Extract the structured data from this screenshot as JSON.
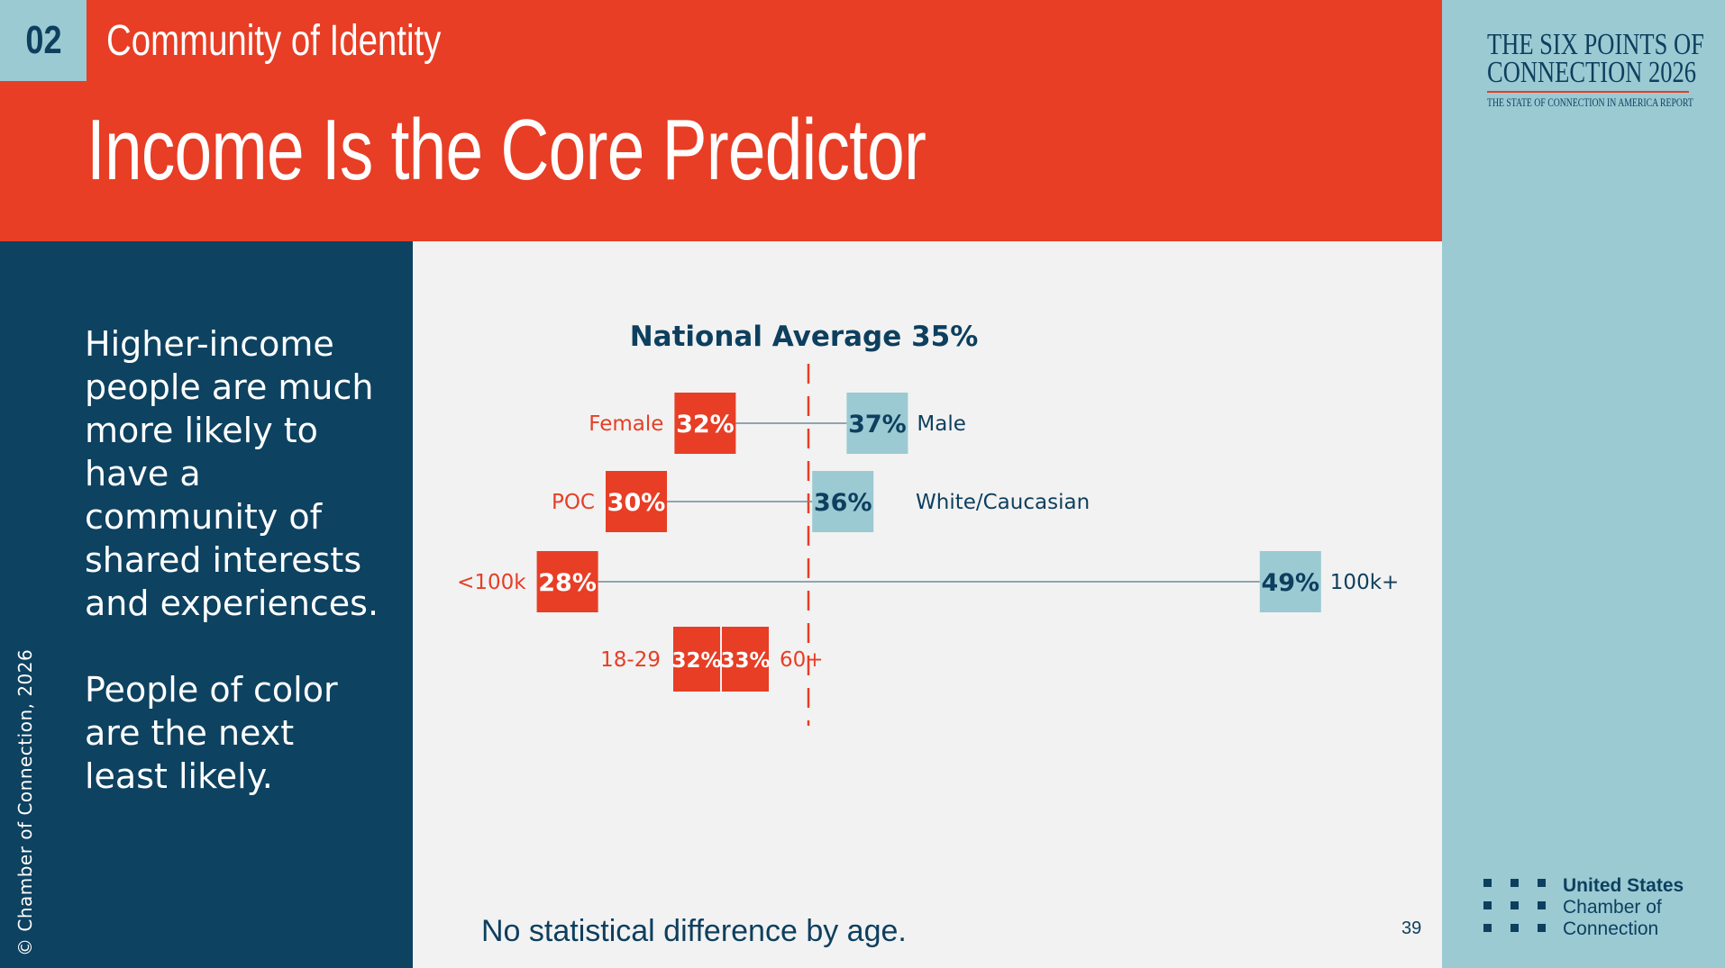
{
  "header": {
    "section_number": "02",
    "section_title": "Community of Identity",
    "title": "Income Is the Core Predictor"
  },
  "brand": {
    "line1": "THE SIX POINTS OF",
    "line2": "CONNECTION 2026",
    "subtitle": "THE STATE OF CONNECTION IN AMERICA REPORT"
  },
  "logo": {
    "line1": "United States",
    "line2": "Chamber of",
    "line3": "Connection"
  },
  "sidebar": {
    "paragraph1": "Higher-income people are much more likely to have a community of shared interests and experiences.",
    "paragraph2": "People of color are the next least likely.",
    "copyright": "© Chamber of Connection, 2026"
  },
  "footnote": "No statistical difference by age.",
  "page_number": "39",
  "colors": {
    "red": "#e73e25",
    "navy": "#0d3f5e",
    "light_blue": "#9bcad3",
    "background": "#f2f2f2"
  },
  "chart_data": {
    "type": "dumbbell",
    "title": "National Average 35%",
    "reference_value": 35,
    "unit": "%",
    "xlim": [
      25,
      52
    ],
    "rows": [
      {
        "low_label": "Female",
        "low_value": 32,
        "low_text": "32%",
        "high_label": "Male",
        "high_value": 37,
        "high_text": "37%"
      },
      {
        "low_label": "POC",
        "low_value": 30,
        "low_text": "30%",
        "high_label": "White/Caucasian",
        "high_value": 36,
        "high_text": "36%"
      },
      {
        "low_label": "<100k",
        "low_value": 28,
        "low_text": "28%",
        "high_label": "100k+",
        "high_value": 49,
        "high_text": "49%"
      },
      {
        "low_label": "18-29",
        "low_value": 32,
        "low_text": "32%",
        "high_label": "60+",
        "high_value": 33,
        "high_text": "33%"
      }
    ]
  }
}
